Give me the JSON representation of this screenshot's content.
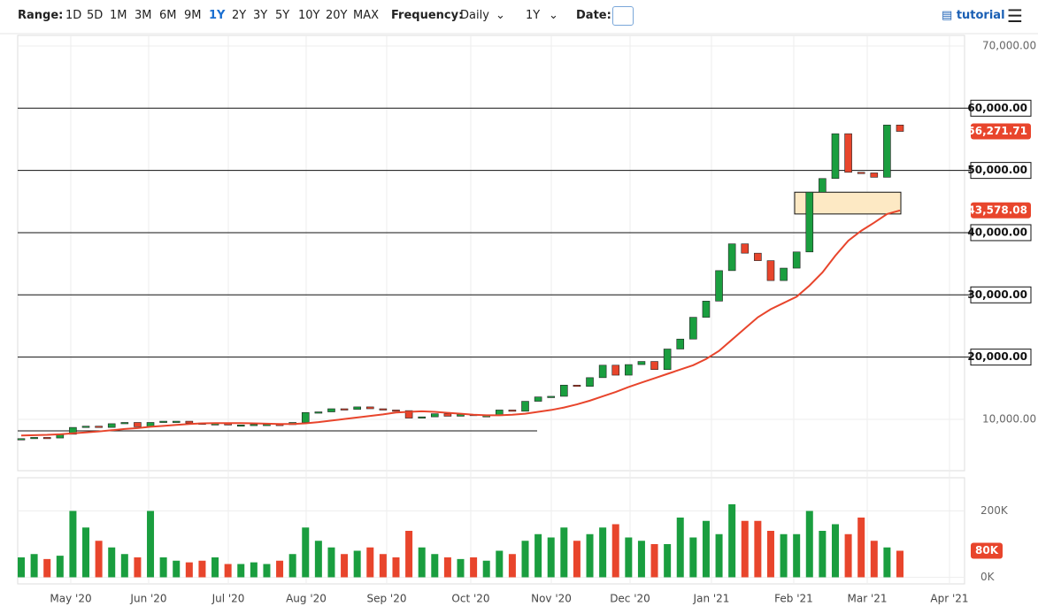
{
  "toolbar": {
    "range_label": "Range:",
    "ranges": [
      "1D",
      "5D",
      "1M",
      "3M",
      "6M",
      "9M",
      "1Y",
      "2Y",
      "3Y",
      "5Y",
      "10Y",
      "20Y",
      "MAX"
    ],
    "frequency_label": "Frequency:",
    "frequency": "Daily",
    "period": "1Y",
    "date_label": "Date:",
    "tutorial": "tutorial"
  },
  "chart_data": {
    "type": "candlestick",
    "xticks": [
      "May '20",
      "Jun '20",
      "Jul '20",
      "Aug '20",
      "Sep '20",
      "Oct '20",
      "Nov '20",
      "Dec '20",
      "Jan '21",
      "Feb '21",
      "Mar '21",
      "Apr '21"
    ],
    "ylim": [
      1750,
      71700
    ],
    "yticks": [
      {
        "value": 10000,
        "label": "10,000.00"
      },
      {
        "value": 70000,
        "label": "70,000.00"
      }
    ],
    "up_color": "#1a9e3f",
    "down_color": "#e8452c",
    "series": [
      {
        "name": "Close",
        "last_label": "56,271.71",
        "values": [
          6900,
          7100,
          7000,
          7600,
          8700,
          8900,
          8700,
          9300,
          9500,
          8800,
          9500,
          9700,
          9700,
          9400,
          9300,
          9300,
          9100,
          9100,
          9200,
          9200,
          9150,
          9500,
          11100,
          11200,
          11700,
          11600,
          12000,
          11700,
          11500,
          11400,
          10200,
          10400,
          10900,
          10500,
          10800,
          10600,
          10600,
          11500,
          11300,
          12900,
          13600,
          13700,
          15500,
          15300,
          16700,
          18700,
          17100,
          18800,
          19300,
          18000,
          21300,
          22900,
          26400,
          29000,
          33900,
          38200,
          36700,
          35500,
          32300,
          34300,
          36900,
          46500,
          48700,
          55900,
          49700,
          49600,
          48900,
          57300,
          56271.71
        ]
      },
      {
        "name": "Moving average",
        "color": "#e8452c",
        "last_label": "43,578.08",
        "values": [
          7400,
          7450,
          7500,
          7600,
          7750,
          7900,
          8050,
          8250,
          8450,
          8600,
          8800,
          8950,
          9100,
          9250,
          9350,
          9400,
          9400,
          9400,
          9350,
          9300,
          9250,
          9250,
          9350,
          9550,
          9800,
          10050,
          10300,
          10550,
          10800,
          11100,
          11200,
          11300,
          11200,
          11050,
          10900,
          10750,
          10650,
          10650,
          10750,
          10900,
          11200,
          11500,
          11900,
          12400,
          13000,
          13700,
          14400,
          15200,
          15900,
          16600,
          17300,
          18000,
          18700,
          19700,
          21000,
          22800,
          24600,
          26400,
          27700,
          28700,
          29700,
          31500,
          33600,
          36300,
          38700,
          40300,
          41600,
          43000,
          43578.08
        ]
      }
    ],
    "hlines": [
      {
        "value": 60000,
        "label": "60,000.00"
      },
      {
        "value": 50000,
        "label": "50,000.00"
      },
      {
        "value": 40000,
        "label": "40,000.00"
      },
      {
        "value": 30000,
        "label": "30,000.00"
      },
      {
        "value": 20000,
        "label": "20,000.00"
      }
    ],
    "support_line": 8150,
    "zone": [
      43000,
      46500
    ],
    "volume": {
      "ylim": [
        -20000,
        300000
      ],
      "yticks": [
        {
          "value": 0,
          "label": "0K"
        },
        {
          "value": 200000,
          "label": "200K"
        }
      ],
      "last_label": "80K",
      "values": [
        60000,
        70000,
        55000,
        65000,
        200000,
        150000,
        110000,
        90000,
        70000,
        60000,
        200000,
        60000,
        50000,
        45000,
        50000,
        60000,
        40000,
        40000,
        45000,
        40000,
        50000,
        70000,
        150000,
        110000,
        90000,
        70000,
        80000,
        90000,
        70000,
        60000,
        140000,
        90000,
        70000,
        60000,
        55000,
        60000,
        50000,
        80000,
        70000,
        110000,
        130000,
        120000,
        150000,
        110000,
        130000,
        150000,
        160000,
        120000,
        110000,
        100000,
        100000,
        180000,
        120000,
        170000,
        130000,
        220000,
        170000,
        170000,
        140000,
        130000,
        130000,
        200000,
        140000,
        160000,
        130000,
        180000,
        110000,
        90000,
        80000
      ]
    }
  }
}
